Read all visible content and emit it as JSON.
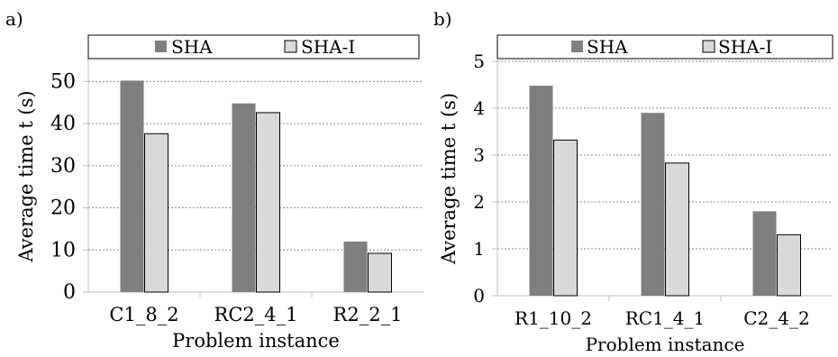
{
  "chart_data": [
    {
      "type": "bar",
      "panel_label": "a)",
      "categories": [
        "C1_8_2",
        "RC2_4_1",
        "R2_2_1"
      ],
      "series": [
        {
          "name": "SHA",
          "values": [
            50.2,
            44.8,
            12.0
          ],
          "color": "#7f7f7f"
        },
        {
          "name": "SHA-I",
          "values": [
            37.6,
            42.6,
            9.2
          ],
          "color": "#d9d9d9"
        }
      ],
      "xlabel": "Problem instance",
      "ylabel": "Average time t (s)",
      "ylim": [
        0,
        55
      ],
      "yticks": [
        0,
        10,
        20,
        30,
        40,
        50
      ],
      "grid": "horizontal dotted",
      "legend": "top"
    },
    {
      "type": "bar",
      "panel_label": "b)",
      "categories": [
        "R1_10_2",
        "RC1_4_1",
        "C2_4_2"
      ],
      "series": [
        {
          "name": "SHA",
          "values": [
            4.48,
            3.9,
            1.8
          ],
          "color": "#7f7f7f"
        },
        {
          "name": "SHA-I",
          "values": [
            3.32,
            2.83,
            1.3
          ],
          "color": "#d9d9d9"
        }
      ],
      "xlabel": "Problem instance",
      "ylabel": "Average time t (s)",
      "ylim": [
        0,
        5
      ],
      "yticks": [
        0,
        1,
        2,
        3,
        4,
        5
      ],
      "grid": "horizontal dotted",
      "legend": "top"
    }
  ]
}
